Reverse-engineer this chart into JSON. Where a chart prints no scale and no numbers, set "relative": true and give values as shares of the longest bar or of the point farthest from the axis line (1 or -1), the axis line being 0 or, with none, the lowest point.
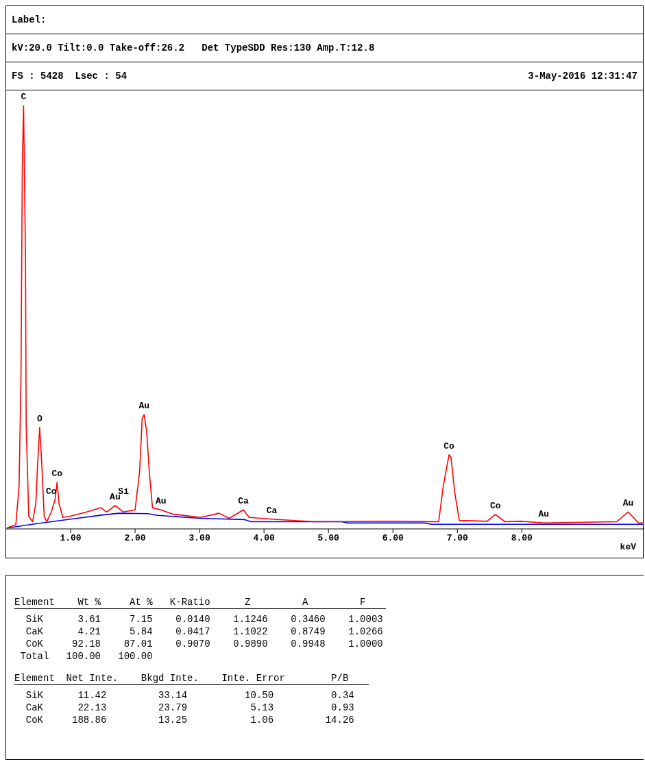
{
  "chart_data": {
    "type": "line",
    "relative": true,
    "xlabel": "keV",
    "xlim": [
      0,
      9.9
    ],
    "xticks": [
      {
        "value": 1,
        "label": "1.00"
      },
      {
        "value": 2,
        "label": "2.00"
      },
      {
        "value": 3,
        "label": "3.00"
      },
      {
        "value": 4,
        "label": "4.00"
      },
      {
        "value": 5,
        "label": "5.00"
      },
      {
        "value": 6,
        "label": "6.00"
      },
      {
        "value": 7,
        "label": "7.00"
      },
      {
        "value": 8,
        "label": "8.00"
      }
    ],
    "marker": "none",
    "line_style": "solid",
    "series": [
      {
        "color": "#ff0000",
        "x": [
          0.01,
          0.15,
          0.2,
          0.23,
          0.25,
          0.27,
          0.3,
          0.31,
          0.35,
          0.41,
          0.46,
          0.49,
          0.52,
          0.55,
          0.59,
          0.63,
          0.7,
          0.76,
          0.79,
          0.82,
          0.88,
          0.99,
          1.25,
          1.47,
          1.56,
          1.69,
          1.82,
          2.0,
          2.07,
          2.11,
          2.14,
          2.18,
          2.22,
          2.27,
          2.4,
          2.58,
          3.02,
          3.3,
          3.46,
          3.68,
          3.77,
          4.12,
          4.78,
          5.86,
          6.71,
          6.78,
          6.87,
          6.9,
          6.96,
          7.03,
          7.46,
          7.59,
          7.74,
          7.98,
          8.34,
          9.47,
          9.65,
          9.81,
          9.89
        ],
        "values": [
          0.002,
          0.01,
          0.1,
          0.36,
          0.85,
          1.0,
          0.64,
          0.25,
          0.03,
          0.017,
          0.06,
          0.16,
          0.24,
          0.16,
          0.03,
          0.017,
          0.04,
          0.07,
          0.11,
          0.06,
          0.027,
          0.03,
          0.04,
          0.05,
          0.04,
          0.055,
          0.04,
          0.045,
          0.135,
          0.26,
          0.27,
          0.23,
          0.135,
          0.05,
          0.045,
          0.035,
          0.027,
          0.037,
          0.025,
          0.045,
          0.027,
          0.023,
          0.017,
          0.018,
          0.017,
          0.1,
          0.175,
          0.17,
          0.085,
          0.02,
          0.018,
          0.034,
          0.017,
          0.018,
          0.014,
          0.017,
          0.04,
          0.014,
          0.014
        ]
      },
      {
        "color": "#0000ff",
        "x": [
          0.01,
          0.5,
          1.0,
          1.5,
          1.75,
          2.2,
          2.35,
          3.0,
          3.7,
          3.8,
          5.2,
          5.3,
          6.5,
          6.6,
          8.1,
          9.89
        ],
        "values": [
          0.002,
          0.013,
          0.023,
          0.033,
          0.037,
          0.036,
          0.032,
          0.025,
          0.022,
          0.017,
          0.017,
          0.014,
          0.014,
          0.011,
          0.011,
          0.011
        ]
      }
    ],
    "annotations": [
      "Label:",
      "kV:20.0 Tilt:0.0 Take-off:26.2   Det TypeSDD Res:130 Amp.T:12.8",
      "FS : 5428  Lsec : 54",
      "3-May-2016 12:31:47",
      "Element    Wt %     At %   K-Ratio      Z         A         F",
      "  SiK      3.61     7.15    0.0140    1.1246    0.3460    1.0003",
      "  CaK      4.21     5.84    0.0417    1.1022    0.8749    1.0266",
      "  CoK     92.18    87.01    0.9070    0.9890    0.9948    1.0000",
      " Total   100.00   100.00",
      "Element  Net Inte.    Bkgd Inte.    Inte. Error        P/B",
      "  SiK      11.42         33.14          10.50          0.34",
      "  CaK      22.13         23.79           5.13          0.93",
      "  CoK     188.86         13.25           1.06         14.26",
      {
        "text": "C",
        "x": 0.27,
        "y": 1.0
      },
      {
        "text": "O",
        "x": 0.52,
        "y": 0.24
      },
      {
        "text": "Co",
        "x": 0.79,
        "y": 0.11
      },
      {
        "text": "Co",
        "x": 0.7,
        "y": 0.04
      },
      {
        "text": "Au",
        "x": 1.69,
        "y": 0.055
      },
      {
        "text": "Si",
        "x": 1.82,
        "y": 0.04
      },
      {
        "text": "Au",
        "x": 2.14,
        "y": 0.27
      },
      {
        "text": "Au",
        "x": 2.4,
        "y": 0.045
      },
      {
        "text": "Ca",
        "x": 3.68,
        "y": 0.045
      },
      {
        "text": "Ca",
        "x": 4.12,
        "y": 0.023
      },
      {
        "text": "Co",
        "x": 6.87,
        "y": 0.175
      },
      {
        "text": "Co",
        "x": 7.59,
        "y": 0.034
      },
      {
        "text": "Au",
        "x": 8.34,
        "y": 0.014
      },
      {
        "text": "Au",
        "x": 9.65,
        "y": 0.04
      }
    ]
  }
}
